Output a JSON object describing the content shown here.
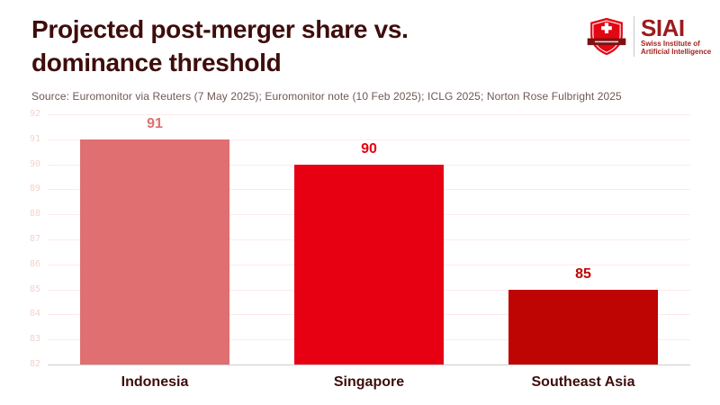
{
  "page": {
    "background": "#ffffff"
  },
  "header": {
    "title_line1": "Projected post-merger share vs.",
    "title_line2": "dominance threshold",
    "title_color": "#3e0d0c",
    "source_text": "Source: Euromonitor via Reuters (7 May 2025); Euromonitor note (10 Feb 2025); ICLG 2025; Norton Rose Fulbright 2025",
    "source_color": "#6f5954"
  },
  "logo": {
    "acronym": "SIAI",
    "subtitle_line1": "Swiss Institute of",
    "subtitle_line2": "Artificial Intelligence",
    "acronym_color": "#9a1b1e",
    "subtitle_color": "#a3231f",
    "shield_color": "#e30613",
    "banner_color": "#7e1013"
  },
  "chart_data": {
    "type": "bar",
    "title": "Projected post-merger share vs. dominance threshold",
    "categories": [
      "Indonesia",
      "Singapore",
      "Southeast Asia"
    ],
    "values": [
      91,
      90,
      85
    ],
    "bar_colors": [
      "#e06f71",
      "#e60012",
      "#bf0404"
    ],
    "ylim": [
      82,
      92
    ],
    "ytick_step": 1,
    "grid": true,
    "legend": false,
    "gridline_color": "#fcebea",
    "baseline_color": "#cfcccc",
    "ytick_color": "#f6d2cf",
    "category_label_color": "#3e0d0c"
  }
}
